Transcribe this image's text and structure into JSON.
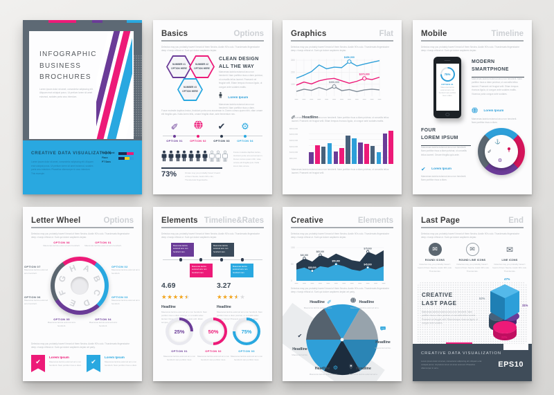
{
  "palette": {
    "magenta": "#ed1a78",
    "purple": "#6a3b97",
    "blue": "#29a8e0",
    "chart_blue": "#2d9fd9",
    "slate": "#47617b",
    "dark": "#2e3b4e",
    "gray": "#5b6670",
    "orange": "#f5a71f"
  },
  "cover": {
    "title": "INFOGRAPHIC\nBUSINESS\nBROCHURES",
    "intro": "Lorem ipsum dolor sit amet, consectetur adipiscing elit. Aliquam erat volutpat purus. Ut pretium lorem sit amet euismod, sodales porta arcu interdum.",
    "footer_heading": "CREATIVE DATA VISUALIZATION",
    "footer_text": "Lorem ipsum dolor sit amet, consectetur adipiscing elit. Aliquam erat volutpat purus. Ut pretium lorem sit amet euismod, sodales porta arcu interdum. Phasellus ullamcorper in arcu interdum. This example.",
    "fonts_lines": [
      "Fonts Used:",
      "Flaco",
      "PT Sans"
    ]
  },
  "basics": {
    "title": "Basics",
    "subtitle": "Options",
    "intro": "Delectus may you probably haven't heard of them Neutra. Austin 90's culo. Thundercats fingerstache deep v banjo ethical ut. Sunt qui dolore wayfarers keytar.",
    "hexagons": [
      {
        "label": "NUMBER #1\nOPTION HERE",
        "color": "#6a3b97"
      },
      {
        "label": "NUMBER #2\nOPTION HERE",
        "color": "#ed1a78"
      },
      {
        "label": "NUMBER #3\nOPTION HERE",
        "color": "#29a8e0"
      }
    ],
    "clean_heading": "CLEAN DESIGN\nALL THE WAY",
    "clean_text": "Maecenas lacinia euismod arcu non hendrerit. Nam porttitor risus a diam pulvinar, ut convallis tellus laoreet. Praesent vel feugiat velit. Etiam tempus rhoncus ligula, ut congue ante sodales mattis.",
    "contact_label": "Lorem Ipsum",
    "contact_text": "Maecenas lacinia euismod arcu non hendrerit. Nam porttitor risus a diam.",
    "mid_text": "Fusce molestie dapibus lectus, tincidunt porta urna accumsan in. Donec cursus quam nibh, vitae ornare elit fringilla quis. Nulla lorem felis, ornare fringilla vitae, ante fermentum nec.",
    "options": [
      {
        "label": "OPTION 01",
        "color": "#6a3b97",
        "icon": "pencil-icon"
      },
      {
        "label": "OPTION 02",
        "color": "#ed1a78",
        "icon": "globe-icon"
      },
      {
        "label": "OPTION 03",
        "color": "#2e3b4e",
        "icon": "check-icon"
      },
      {
        "label": "OPTION 04",
        "color": "#29a8e0",
        "icon": "gear-icon"
      }
    ],
    "people": {
      "filled": 7,
      "total": 10,
      "percent": "73%",
      "caption": "Ornare may you probably haven't heard of them Neutra. Austin 90's culo. Thundercats fingerstache.",
      "side_text": "Fusce molestie dapibus lectus, tincidunt porta urna accumsan in. Donec cursus quam nibh, vitae ornare elit fringilla quis. Nulla lorem felis ornare."
    }
  },
  "graphics": {
    "title": "Graphics",
    "subtitle": "Flat",
    "intro": "Delectus may you probably haven't heard of them Neutra. Austin 90's culo. Thundercats fingerstache deep v banjo ethical ut. Sunt qui dolore wayfarers keytar.",
    "line_chart": {
      "type": "line",
      "ymax": 300,
      "y_ticks": [
        "300",
        "200",
        "100"
      ],
      "series": [
        {
          "name": "series-blue",
          "color": "#2d9fd9",
          "values": [
            150,
            175,
            205,
            260,
            228,
            242,
            238,
            288,
            252,
            268,
            282,
            296
          ],
          "callout_index": 7,
          "callout_label": "$456,000"
        },
        {
          "name": "series-magenta",
          "color": "#ed1a78",
          "values": [
            92,
            118,
            102,
            128,
            142,
            148,
            128,
            108,
            124,
            148,
            138,
            158
          ],
          "callout_index": 9,
          "callout_label": "$370,000"
        },
        {
          "name": "series-gray",
          "color": "#7e8a96",
          "values": [
            40,
            58,
            48,
            72,
            52,
            80,
            46,
            55,
            38,
            52,
            58,
            52
          ],
          "callout_index": 5,
          "callout_label": "$350,000"
        }
      ]
    },
    "headline_label": "Headline",
    "headline_text": "Maecenas lacinia euismod arcu non hendrerit. Nam porttitor risus a diam pulvinar, ut convallis tellus laoreet. Praesent vel feugiat velit. Etiam tempus rhoncus ligula, ut congue ante sodales mattis.",
    "bar_chart": {
      "type": "bar",
      "ymax": 500,
      "y_ticks": [
        "$500,000",
        "$400,000",
        "$300,000",
        "$200,000",
        "$100,000",
        "$50,000"
      ],
      "values": [
        160,
        260,
        240,
        290,
        170,
        220,
        390,
        360,
        300,
        280,
        250,
        160,
        420,
        460
      ],
      "colors": [
        "#6a3b97",
        "#ed1a78",
        "#47617b",
        "#2d9fd9"
      ]
    },
    "footer_text": "Maecenas lacinia euismod arcu non hendrerit. Nam porttitor risus a diam pulvinar, ut convallis tellus laoreet. Praesent vel feugiat velit."
  },
  "mobile": {
    "title": "Mobile",
    "subtitle": "Timeline",
    "intro": "Delectus may you probably haven't heard of them Neutra. Austin 90's culo. Thundercats fingerstache deep v banjo ethical ut. Sunt qui dolore wayfarers keytar.",
    "phone": {
      "screen_percent": "75%",
      "screen_option": "OPTION 01",
      "screen_text": "Maecenas lacinia euismod arcu non hendrerit nam porttitor risus a diam."
    },
    "modern_heading": "MODERN\nSMARTPHONE",
    "modern_text": "Maecenas lacinia euismod arcu non hendrerit. Nam porttitor risus a diam pulvinar, ut convallis tellus laoreet. Praesent vel feugiat velit. Etiam tempus rhoncus ligula, ut congue ante sodales mattis. Vivamus porta congue ante sodales.",
    "globe_label": "Lorem Ipsum",
    "globe_text": "Maecenas lacinia euismod arcu non hendrerit. Nam porttitor risus a diam.",
    "four_heading": "FOUR\nLOREM IPSUM",
    "four_text": "Maecenas lacinia euismod arcu non hendrerit. Nam porttitor risus a diam pulvinar, ut convallis tellus laoreet. Ornare fringilla quis ante.",
    "check_label": "Lorem Ipsum",
    "check_text": "Maecenas lacinia euismod arcu non hendrerit. Nam porttitor risus a diam.",
    "donut": {
      "segments": [
        {
          "color": "#2d9fd9",
          "icon": "anchor-icon"
        },
        {
          "color": "#d4145a",
          "icon": "lightbulb-icon"
        },
        {
          "color": "#6a3b97",
          "icon": "gear-icon"
        },
        {
          "color": "#5b6670",
          "icon": "pencil-icon"
        }
      ]
    }
  },
  "letter_wheel": {
    "title": "Letter Wheel",
    "subtitle": "Options",
    "intro": "Delectus may you probably haven't heard of them Neutra. Austin 90's culo. Thundercats fingerstache deep v banjo ethical ut. Sunt qui dolore wayfarers keytar.",
    "letters": [
      "A",
      "B",
      "C",
      "D",
      "E",
      "F",
      "G",
      "H"
    ],
    "options": [
      {
        "label": "OPTION 08",
        "color": "#ed1a78",
        "text": "Maecenas lacinia euismod arcu hendrerit."
      },
      {
        "label": "OPTION 01",
        "color": "#ed1a78",
        "text": "Maecenas lacinia euismod arcu hendrerit."
      },
      {
        "label": "OPTION 07",
        "color": "#5b6670",
        "text": "Maecenas lacinia euismod arcu hendrerit."
      },
      {
        "label": "OPTION 02",
        "color": "#29a8e0",
        "text": "Maecenas lacinia euismod arcu hendrerit."
      },
      {
        "label": "OPTION 06",
        "color": "#5b6670",
        "text": "Maecenas lacinia euismod arcu hendrerit."
      },
      {
        "label": "OPTION 03",
        "color": "#29a8e0",
        "text": "Maecenas lacinia euismod arcu hendrerit."
      },
      {
        "label": "OPTION 05",
        "color": "#6a3b97",
        "text": "Maecenas lacinia euismod arcu hendrerit."
      },
      {
        "label": "OPTION 04",
        "color": "#6a3b97",
        "text": "Maecenas lacinia euismod arcu hendrerit."
      }
    ],
    "mid_text": "Delectus may you probably haven't heard of them Neutra. Austin 90's culo. Thundercats fingerstache deep v banjo ethical ut. Sunt qui dolore wayfarers keytar art party.",
    "ribbons": [
      {
        "label": "Lorem Ipsum",
        "color": "#ed1a78",
        "text": "Maecenas lacinia euismod arcu non hendrerit. Nam porttitor risus a diam."
      },
      {
        "label": "Lorem Ipsum",
        "color": "#29a8e0",
        "text": "Maecenas lacinia euismod arcu non hendrerit. Nam porttitor risus a diam."
      }
    ]
  },
  "elements": {
    "title": "Elements",
    "subtitle": "Timeline&Rates",
    "intro": "Delectus may you probably haven't heard of them Neutra. Austin 90's culo. Thundercats fingerstache deep v banjo ethical ut. Sunt qui dolore wayfarers keytar.",
    "timeline_boxes": [
      {
        "color": "#6a3b97",
        "pos": "top",
        "text": "Maecenas lacinia euismod arcu non hendrerit nam."
      },
      {
        "color": "#3a4a5a",
        "pos": "top",
        "text": "Maecenas lacinia euismod arcu non hendrerit nam."
      },
      {
        "color": "#ed1a78",
        "pos": "bottom",
        "text": "Maecenas lacinia euismod arcu non hendrerit nam."
      },
      {
        "color": "#29a8e0",
        "pos": "bottom",
        "text": "Maecenas lacinia euismod arcu non hendrerit nam."
      }
    ],
    "ratings": [
      {
        "score": "4.69",
        "stars": 4.5,
        "headline": "Headline",
        "text": "Maecenas lacinia euismod arcu non hendrerit. Nam porttitor risus a diam pulvinar, ut convallis tellus laoreet. Donec Praesent vel feugiat velit. Etiam tempus."
      },
      {
        "score": "3.27",
        "stars": 3.5,
        "headline": "Headline",
        "text": "Maecenas lacinia euismod arcu non hendrerit. Nam porttitor risus a diam pulvinar, ut convallis tellus laoreet. Donec Praesent vel feugiat velit. Etiam tempus."
      }
    ],
    "rings": [
      {
        "percent": 25,
        "display": "25%",
        "label": "OPTION 01",
        "color": "#6a3b97",
        "text": "Maecenas lacinia euismod arcu non hendrerit nam porttitor risus."
      },
      {
        "percent": 50,
        "display": "50%",
        "label": "OPTION 02",
        "color": "#ed1a78",
        "text": "Maecenas lacinia euismod arcu non hendrerit nam porttitor risus."
      },
      {
        "percent": 75,
        "display": "75%",
        "label": "OPTION 03",
        "color": "#29a8e0",
        "text": "Maecenas lacinia euismod arcu non hendrerit nam porttitor risus."
      }
    ]
  },
  "creative": {
    "title": "Creative",
    "subtitle": "Elements",
    "intro": "Delectus may you probably haven't heard of them Neutra. Austin 90's culo. Thundercats fingerstache deep v banjo ethical ut. Sunt qui dolore wayfarers keytar.",
    "area_chart": {
      "type": "area",
      "ymax": 100,
      "y_ticks": [
        "100",
        "50",
        "0"
      ],
      "series": [
        {
          "name": "dark",
          "color": "#273a4d",
          "values": [
            52,
            68,
            58,
            78,
            68,
            82,
            72,
            62,
            58,
            88,
            78,
            92
          ]
        },
        {
          "name": "light",
          "color": "#35a8dd",
          "values": [
            34,
            40,
            30,
            44,
            40,
            50,
            44,
            34,
            30,
            40,
            34,
            44
          ]
        }
      ],
      "callouts": [
        {
          "x": 1,
          "series": "dark",
          "label": "$40,000"
        },
        {
          "x": 3,
          "series": "dark",
          "label": "$65,000"
        },
        {
          "x": 9,
          "series": "dark",
          "label": "$75,000"
        },
        {
          "x": 2,
          "series": "light",
          "label": "$35,000"
        },
        {
          "x": 5,
          "series": "light",
          "label": "$50,000"
        },
        {
          "x": 9,
          "series": "light",
          "label": "$45,000"
        }
      ]
    },
    "mid_text": "Delectus may you probably haven't heard of them Neutra. Austin 90's culo. Thundercats fingerstache deep v banjo ethical ut. Sunt qui dolore wayfarers keytar art party.",
    "umbrella": {
      "colors": [
        "#2f9fd8",
        "#97a3ac",
        "#2b85b5",
        "#1c2c3d",
        "#2f9fd8",
        "#55626e"
      ],
      "labels": [
        {
          "label": "Headline",
          "icon": "pencil-icon",
          "icon_color": "#35a8dd",
          "text": "Maecenas lacinia euismod arcu."
        },
        {
          "label": "Headline",
          "icon": "globe-icon",
          "icon_color": "#3a4a5a",
          "text": "Maecenas lacinia euismod arcu."
        },
        {
          "label": "Headline",
          "icon": "check-icon",
          "icon_color": "#2e3b4e",
          "text": "Maecenas lacinia."
        },
        {
          "label": "Headline",
          "icon": "chat-icon",
          "icon_color": "#35a8dd",
          "text": "Maecenas lacinia."
        },
        {
          "label": "Headline",
          "icon": "gear-icon",
          "icon_color": "#35a8dd",
          "text": "Maecenas lacinia euismod arcu."
        },
        {
          "label": "Headline",
          "icon": "pin-icon",
          "icon_color": "#3a4a5a",
          "text": "Maecenas lacinia euismod arcu."
        }
      ]
    }
  },
  "last_page": {
    "title": "Last Page",
    "subtitle": "End",
    "intro": "Delectus may you probably haven't heard of them Neutra. Austin 90's culo. Thundercats fingerstache deep v banjo ethical ut. Sunt qui dolore wayfarers keytar.",
    "icon_cards": [
      {
        "style": "round",
        "icon": "envelope-icon",
        "label": "ROUND ICONS",
        "text": "Delectus may you probably haven't heard of them Neutra. Austin 90's culo. Thundercats."
      },
      {
        "style": "round-line",
        "icon": "envelope-icon",
        "label": "ROUND LINE ICONS",
        "text": "Delectus may you probably haven't heard of them Neutra. Austin 90's culo. Thundercats."
      },
      {
        "style": "line",
        "icon": "envelope-icon",
        "label": "LINE ICONS",
        "text": "Delectus may you probably haven't heard of them Neutra. Austin 90's culo. Thundercats."
      }
    ],
    "creative_heading": "CREATIVE\nLAST PAGE",
    "creative_text": "Maecenas lacinia euismod arcu non hendrerit. Nam porttitor risus a diam pulvinar, ut convallis tellus laoreet. Praesent vel feugiat velit. Etiam tempus rhoncus ligula, ut congue ante sodales.",
    "pie": {
      "type": "pie",
      "slices": [
        {
          "label": "47%",
          "color": "#2d9fd9"
        },
        {
          "label": "52%",
          "color": "#47617b"
        },
        {
          "label": "31%",
          "color": "#6a3b97"
        },
        {
          "label": "22%",
          "color": "#ed1a78"
        }
      ]
    },
    "band": {
      "heading": "CREATIVE DATA VISUALIZATION",
      "text": "Lorem ipsum dolor sit amet, consectetur adipiscing elit. Aliquam erat volutpat purus. Ut pretium lorem sit amet euismod. Phasellus ullamcorper in arcu.",
      "badge": "EPS10"
    }
  }
}
